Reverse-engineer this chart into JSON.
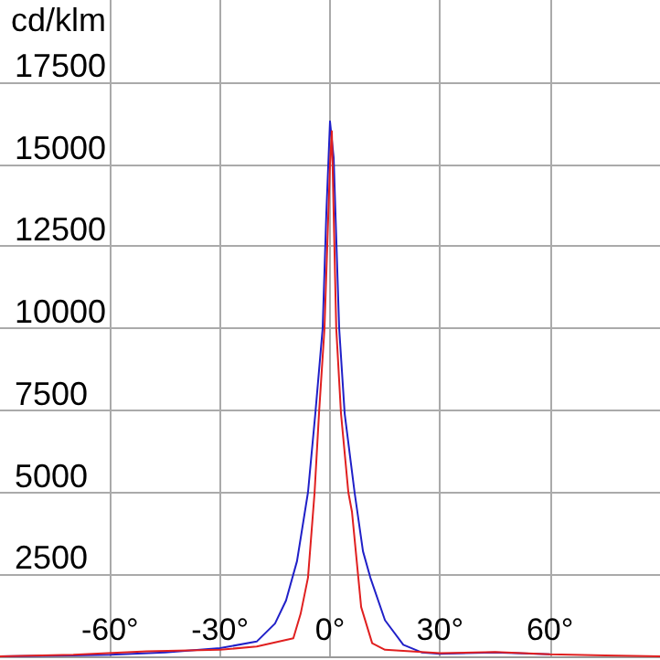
{
  "chart_data": {
    "type": "line",
    "ylabel": "cd/klm",
    "xlim": [
      -90,
      90
    ],
    "ylim": [
      0,
      20000
    ],
    "xticks": [
      {
        "value": -60,
        "label": "-60°"
      },
      {
        "value": -30,
        "label": "-30°"
      },
      {
        "value": 0,
        "label": "0°"
      },
      {
        "value": 30,
        "label": "30°"
      },
      {
        "value": 60,
        "label": "60°"
      }
    ],
    "yticks": [
      2500,
      5000,
      7500,
      10000,
      12500,
      15000,
      17500
    ],
    "grid": true,
    "marker": "none",
    "line_style": "solid",
    "series": [
      {
        "color": "#2020c8",
        "x": [
          -90,
          -70,
          -60,
          -45,
          -30,
          -20,
          -15,
          -12,
          -9,
          -6,
          -4,
          -2,
          -1,
          0,
          1,
          2.5,
          4,
          6.7,
          9,
          11,
          15,
          20,
          25,
          30,
          45,
          60
        ],
        "values": [
          0,
          30,
          50,
          120,
          250,
          450,
          1000,
          1700,
          2900,
          5000,
          7400,
          10000,
          13500,
          16300,
          15200,
          10000,
          7400,
          5000,
          3200,
          2400,
          1100,
          350,
          120,
          80,
          120,
          60
        ]
      },
      {
        "color": "#e02020",
        "x": [
          -90,
          -70,
          -50,
          -30,
          -20,
          -10,
          -8,
          -6,
          -4.2,
          -3,
          -1.5,
          0,
          0.5,
          1.7,
          3,
          5,
          6,
          8.5,
          11.5,
          15,
          22,
          30,
          45,
          60,
          75,
          90
        ],
        "values": [
          0,
          50,
          150,
          200,
          300,
          550,
          1300,
          2400,
          5000,
          7400,
          10000,
          15000,
          16000,
          10000,
          7400,
          5000,
          4400,
          1500,
          400,
          200,
          150,
          100,
          130,
          60,
          30,
          0
        ]
      }
    ]
  }
}
